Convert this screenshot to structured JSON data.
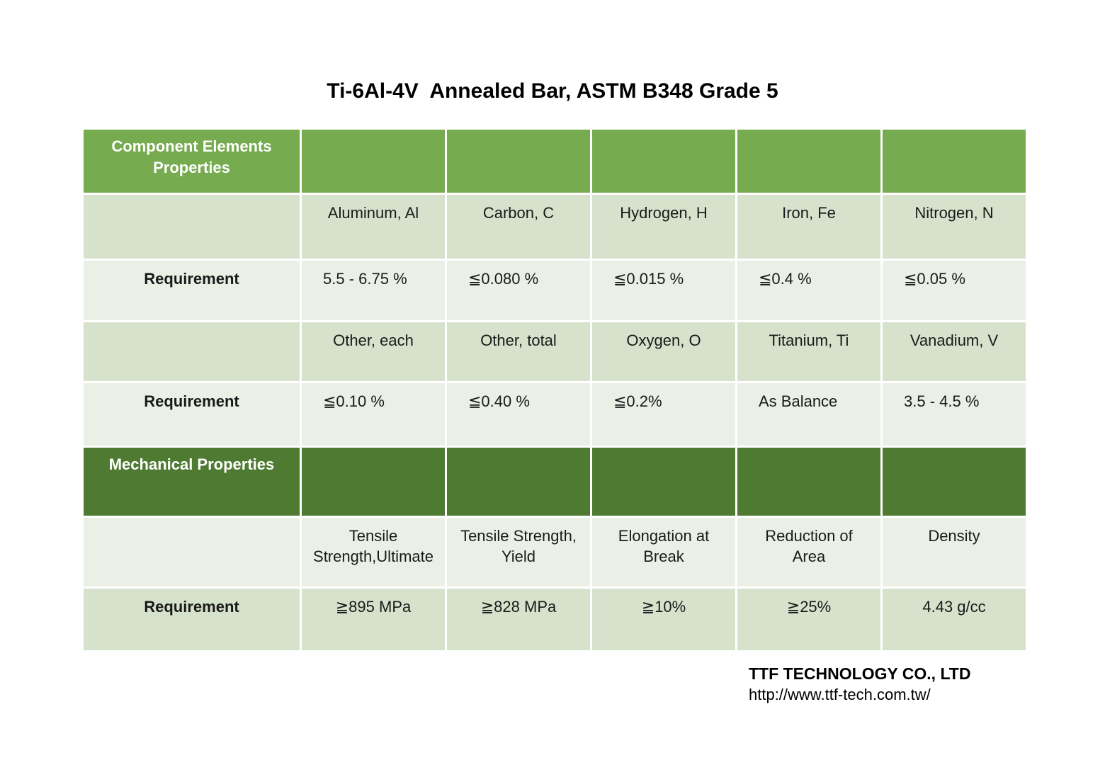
{
  "title": "Ti-6Al-4V  Annealed Bar, ASTM B348 Grade 5",
  "table": {
    "rows": [
      {
        "label": "Component Elements\nProperties",
        "cells": [
          "",
          "",
          "",
          "",
          ""
        ]
      },
      {
        "label": "",
        "cells": [
          "Aluminum, Al",
          "Carbon, C",
          "Hydrogen, H",
          "Iron, Fe",
          "Nitrogen, N"
        ]
      },
      {
        "label": "Requirement",
        "cells": [
          "5.5 - 6.75 %",
          "≦0.080 %",
          "≦0.015 %",
          "≦0.4 %",
          "≦0.05 %"
        ]
      },
      {
        "label": "",
        "cells": [
          "Other, each",
          "Other, total",
          "Oxygen, O",
          "Titanium, Ti",
          "Vanadium, V"
        ]
      },
      {
        "label": "Requirement",
        "cells": [
          "≦0.10 %",
          "≦0.40 %",
          "≦0.2%",
          "As Balance",
          "3.5 - 4.5 %"
        ]
      },
      {
        "label": "Mechanical Properties",
        "cells": [
          "",
          "",
          "",
          "",
          ""
        ]
      },
      {
        "label": "",
        "cells": [
          "Tensile\nStrength,Ultimate",
          "Tensile Strength,\nYield",
          "Elongation at\nBreak",
          "Reduction of\nArea",
          "Density"
        ]
      },
      {
        "label": "Requirement",
        "cells": [
          "≧895 MPa",
          "≧828 MPa",
          "≧10%",
          "≧25%",
          "4.43 g/cc"
        ]
      }
    ]
  },
  "footer": {
    "company": "TTF TECHNOLOGY CO., LTD",
    "url": "http://www.ttf-tech.com.tw/"
  },
  "colors": {
    "header_green": "#76ab4f",
    "header_dark_green": "#4e7a31",
    "band_light": "#d6e2cc",
    "band_lighter": "#ebf0e6"
  }
}
